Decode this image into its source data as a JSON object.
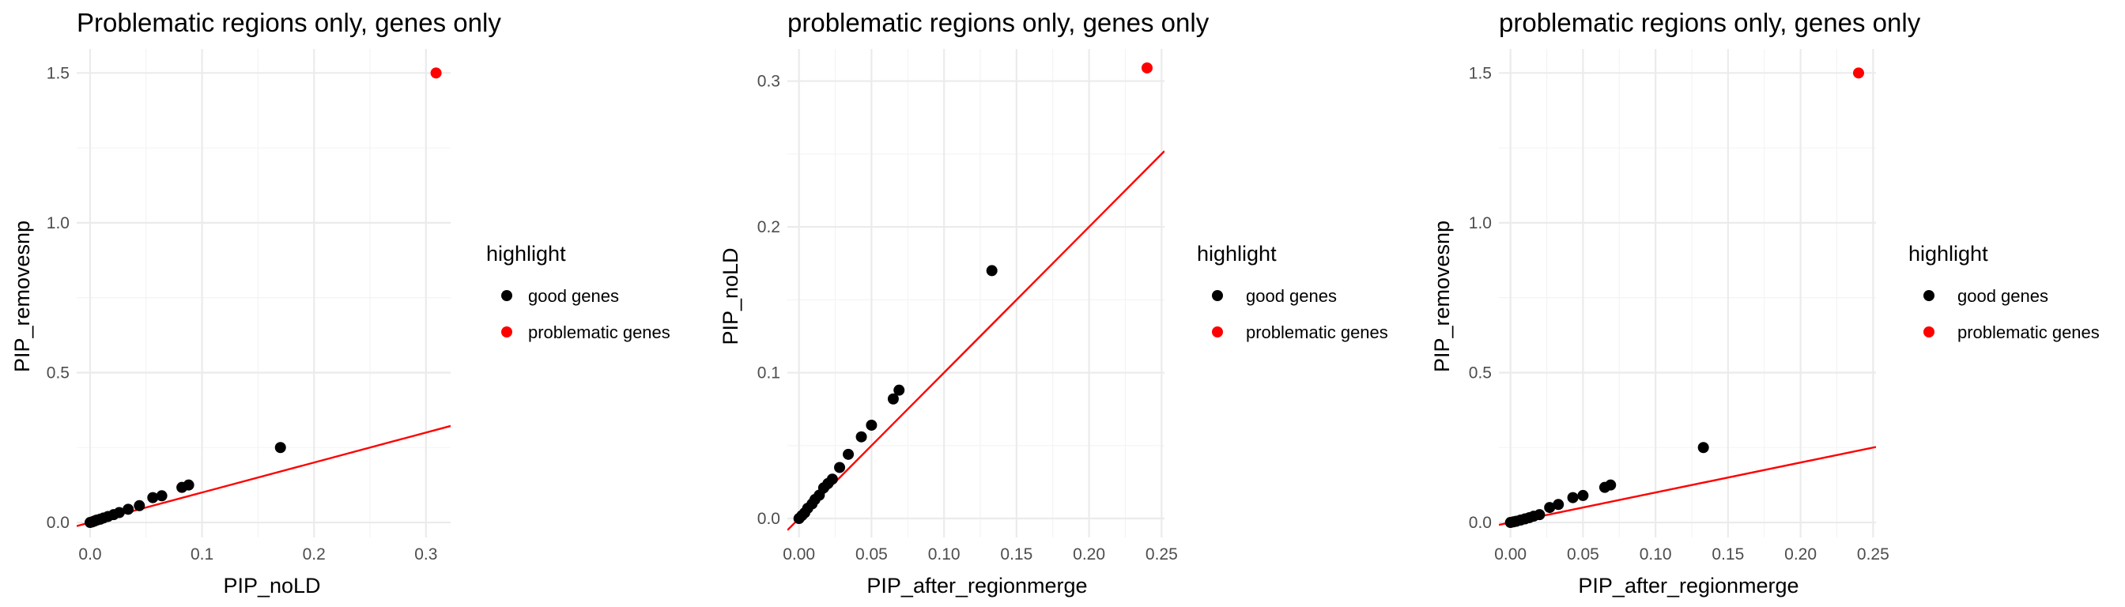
{
  "chart_data": [
    {
      "type": "scatter",
      "title": "Problematic regions only, genes only",
      "xlabel": "PIP_noLD",
      "ylabel": "PIP_removesnp",
      "xlim": [
        -0.012,
        0.322
      ],
      "ylim": [
        -0.05,
        1.58
      ],
      "x_ticks": [
        0.0,
        0.1,
        0.2,
        0.3
      ],
      "x_tick_labels": [
        "0.0",
        "0.1",
        "0.2",
        "0.3"
      ],
      "y_ticks": [
        0.0,
        0.5,
        1.0,
        1.5
      ],
      "y_tick_labels": [
        "0.0",
        "0.5",
        "1.0",
        "1.5"
      ],
      "grid": true,
      "reference_line": {
        "slope": 1,
        "intercept": 0,
        "color": "#ff0000"
      },
      "series": [
        {
          "name": "good genes",
          "color": "#000000",
          "points": [
            [
              0.0,
              0.0
            ],
            [
              0.002,
              0.002
            ],
            [
              0.004,
              0.005
            ],
            [
              0.006,
              0.008
            ],
            [
              0.009,
              0.011
            ],
            [
              0.012,
              0.015
            ],
            [
              0.016,
              0.02
            ],
            [
              0.021,
              0.026
            ],
            [
              0.026,
              0.033
            ],
            [
              0.034,
              0.044
            ],
            [
              0.044,
              0.056
            ],
            [
              0.056,
              0.083
            ],
            [
              0.064,
              0.089
            ],
            [
              0.082,
              0.117
            ],
            [
              0.088,
              0.125
            ],
            [
              0.17,
              0.25
            ]
          ]
        },
        {
          "name": "problematic genes",
          "color": "#ff0000",
          "points": [
            [
              0.309,
              1.5
            ]
          ]
        }
      ],
      "legend": {
        "title": "highlight",
        "position": "right"
      }
    },
    {
      "type": "scatter",
      "title": "problematic regions only, genes only",
      "xlabel": "PIP_after_regionmerge",
      "ylabel": "PIP_noLD",
      "xlim": [
        -0.008,
        0.252
      ],
      "ylim": [
        -0.013,
        0.322
      ],
      "x_ticks": [
        0.0,
        0.05,
        0.1,
        0.15,
        0.2,
        0.25
      ],
      "x_tick_labels": [
        "0.00",
        "0.05",
        "0.10",
        "0.15",
        "0.20",
        "0.25"
      ],
      "y_ticks": [
        0.0,
        0.1,
        0.2,
        0.3
      ],
      "y_tick_labels": [
        "0.0",
        "0.1",
        "0.2",
        "0.3"
      ],
      "grid": true,
      "reference_line": {
        "slope": 1,
        "intercept": 0,
        "color": "#ff0000"
      },
      "series": [
        {
          "name": "good genes",
          "color": "#000000",
          "points": [
            [
              0.0,
              0.0
            ],
            [
              0.002,
              0.002
            ],
            [
              0.004,
              0.004
            ],
            [
              0.006,
              0.007
            ],
            [
              0.009,
              0.01
            ],
            [
              0.011,
              0.013
            ],
            [
              0.014,
              0.016
            ],
            [
              0.017,
              0.021
            ],
            [
              0.02,
              0.024
            ],
            [
              0.023,
              0.027
            ],
            [
              0.028,
              0.035
            ],
            [
              0.034,
              0.044
            ],
            [
              0.043,
              0.056
            ],
            [
              0.05,
              0.064
            ],
            [
              0.065,
              0.082
            ],
            [
              0.069,
              0.088
            ],
            [
              0.133,
              0.17
            ]
          ]
        },
        {
          "name": "problematic genes",
          "color": "#ff0000",
          "points": [
            [
              0.24,
              0.309
            ]
          ]
        }
      ],
      "legend": {
        "title": "highlight",
        "position": "right"
      }
    },
    {
      "type": "scatter",
      "title": "problematic regions only, genes only",
      "xlabel": "PIP_after_regionmerge",
      "ylabel": "PIP_removesnp",
      "xlim": [
        -0.008,
        0.252
      ],
      "ylim": [
        -0.05,
        1.58
      ],
      "x_ticks": [
        0.0,
        0.05,
        0.1,
        0.15,
        0.2,
        0.25
      ],
      "x_tick_labels": [
        "0.00",
        "0.05",
        "0.10",
        "0.15",
        "0.20",
        "0.25"
      ],
      "y_ticks": [
        0.0,
        0.5,
        1.0,
        1.5
      ],
      "y_tick_labels": [
        "0.0",
        "0.5",
        "1.0",
        "1.5"
      ],
      "grid": true,
      "reference_line": {
        "slope": 1,
        "intercept": 0,
        "color": "#ff0000"
      },
      "series": [
        {
          "name": "good genes",
          "color": "#000000",
          "points": [
            [
              0.0,
              0.0
            ],
            [
              0.002,
              0.002
            ],
            [
              0.004,
              0.004
            ],
            [
              0.007,
              0.008
            ],
            [
              0.01,
              0.012
            ],
            [
              0.013,
              0.016
            ],
            [
              0.016,
              0.021
            ],
            [
              0.02,
              0.026
            ],
            [
              0.027,
              0.05
            ],
            [
              0.033,
              0.06
            ],
            [
              0.043,
              0.083
            ],
            [
              0.05,
              0.09
            ],
            [
              0.065,
              0.117
            ],
            [
              0.069,
              0.125
            ],
            [
              0.133,
              0.25
            ]
          ]
        },
        {
          "name": "problematic genes",
          "color": "#ff0000",
          "points": [
            [
              0.24,
              1.5
            ]
          ]
        }
      ],
      "legend": {
        "title": "highlight",
        "position": "right"
      }
    }
  ]
}
